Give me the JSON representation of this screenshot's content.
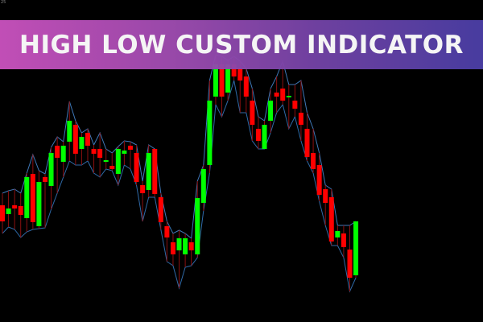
{
  "banner": {
    "title": "HIGH LOW CUSTOM INDICATOR"
  },
  "corner_label": "25",
  "colors": {
    "bull": "#00ff00",
    "bear": "#ff0000",
    "wick": "#8b1010",
    "high_line": "#3f78b8",
    "low_line": "#2f6aa8",
    "background": "#000000",
    "banner_start": "#c952be",
    "banner_end": "#4b3fa6"
  },
  "chart_data": {
    "type": "candlestick",
    "indicator": "high-low channel",
    "grid": false,
    "ohlc": [
      [
        145,
        160,
        110,
        125
      ],
      [
        134,
        163,
        118,
        141
      ],
      [
        145,
        165,
        115,
        141
      ],
      [
        144,
        160,
        105,
        133
      ],
      [
        129,
        185,
        112,
        180
      ],
      [
        184,
        208,
        115,
        124
      ],
      [
        119,
        188,
        116,
        174
      ],
      [
        180,
        184,
        117,
        174
      ],
      [
        169,
        217,
        140,
        210
      ],
      [
        219,
        230,
        160,
        204
      ],
      [
        199,
        224,
        180,
        219
      ],
      [
        224,
        274,
        200,
        250
      ],
      [
        245,
        250,
        195,
        209
      ],
      [
        215,
        235,
        195,
        230
      ],
      [
        235,
        240,
        200,
        219
      ],
      [
        215,
        220,
        185,
        209
      ],
      [
        215,
        235,
        180,
        204
      ],
      [
        199,
        215,
        190,
        201
      ],
      [
        194,
        210,
        188,
        190
      ],
      [
        184,
        218,
        170,
        215
      ],
      [
        209,
        225,
        195,
        213
      ],
      [
        219,
        224,
        190,
        214
      ],
      [
        210,
        220,
        170,
        174
      ],
      [
        170,
        175,
        125,
        160
      ],
      [
        164,
        220,
        155,
        210
      ],
      [
        215,
        215,
        155,
        159
      ],
      [
        155,
        160,
        115,
        124
      ],
      [
        119,
        125,
        75,
        105
      ],
      [
        99,
        110,
        70,
        84
      ],
      [
        89,
        114,
        42,
        104
      ],
      [
        84,
        110,
        68,
        104
      ],
      [
        99,
        104,
        70,
        89
      ],
      [
        84,
        175,
        80,
        154
      ],
      [
        148,
        195,
        138,
        190
      ],
      [
        195,
        300,
        185,
        275
      ],
      [
        280,
        332,
        270,
        320
      ],
      [
        320,
        330,
        255,
        280
      ],
      [
        285,
        325,
        275,
        320
      ],
      [
        320,
        330,
        300,
        305
      ],
      [
        315,
        324,
        260,
        300
      ],
      [
        305,
        315,
        260,
        280
      ],
      [
        275,
        290,
        225,
        245
      ],
      [
        240,
        255,
        215,
        225
      ],
      [
        215,
        250,
        215,
        245
      ],
      [
        250,
        290,
        235,
        275
      ],
      [
        285,
        305,
        260,
        280
      ],
      [
        290,
        324,
        270,
        275
      ],
      [
        279,
        295,
        240,
        281
      ],
      [
        275,
        295,
        255,
        265
      ],
      [
        260,
        300,
        225,
        245
      ],
      [
        240,
        260,
        200,
        205
      ],
      [
        210,
        240,
        185,
        190
      ],
      [
        195,
        210,
        150,
        158
      ],
      [
        165,
        170,
        120,
        148
      ],
      [
        155,
        165,
        95,
        100
      ],
      [
        105,
        120,
        95,
        113
      ],
      [
        110,
        120,
        80,
        93
      ],
      [
        90,
        120,
        38,
        55
      ],
      [
        58,
        125,
        55,
        125
      ]
    ]
  }
}
